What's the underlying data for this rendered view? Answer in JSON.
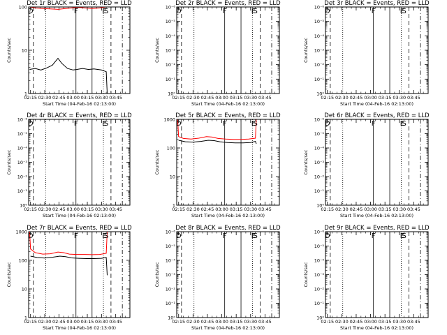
{
  "chart_data": {
    "type": "line",
    "layout": "3x3 grid",
    "xlabel": "Start Time (04-Feb-16 02:13:00)",
    "ylabel": "Counts/sec",
    "x_ticks": [
      "02:15",
      "02:30",
      "02:45",
      "03:00",
      "03:15",
      "03:30",
      "03:45"
    ],
    "x_range_minutes": [
      13,
      120
    ],
    "markers": [
      {
        "label": "D",
        "minute": 15
      },
      {
        "label": "F",
        "minute": 63
      },
      {
        "label": "E",
        "minute": 93
      },
      {
        "label": "S",
        "minute": 95
      }
    ],
    "vertical_lines": [
      {
        "style": "dashed",
        "minute": 18
      },
      {
        "style": "dotted",
        "minute": 31
      },
      {
        "style": "solid",
        "minute": 63
      },
      {
        "style": "solid",
        "minute": 80
      },
      {
        "style": "dotted",
        "minute": 92
      },
      {
        "style": "dashed",
        "minute": 100
      },
      {
        "style": "dashdot",
        "minute": 112
      }
    ],
    "series": [
      {
        "name": "Events",
        "color": "#000000"
      },
      {
        "name": "LLD",
        "color": "#ff0000"
      }
    ],
    "panels": [
      {
        "title": "Det 1r BLACK = Events, RED = LLD",
        "yscale": "log",
        "ylim": [
          1,
          100
        ],
        "y_ticks": [
          "1",
          "10",
          "100"
        ],
        "markers_shown": [
          "D",
          "F",
          "E",
          "S"
        ],
        "lld": [
          [
            14,
            100
          ],
          [
            20,
            95
          ],
          [
            28,
            92
          ],
          [
            36,
            90
          ],
          [
            44,
            88
          ],
          [
            52,
            92
          ],
          [
            60,
            96
          ],
          [
            65,
            98
          ],
          [
            72,
            95
          ],
          [
            80,
            92
          ],
          [
            88,
            95
          ],
          [
            95,
            100
          ]
        ],
        "events": [
          [
            14,
            3.6
          ],
          [
            20,
            3.8
          ],
          [
            26,
            3.5
          ],
          [
            32,
            3.9
          ],
          [
            38,
            4.5
          ],
          [
            44,
            6.5
          ],
          [
            48,
            5
          ],
          [
            54,
            3.8
          ],
          [
            60,
            3.5
          ],
          [
            64,
            3.6
          ],
          [
            70,
            3.8
          ],
          [
            76,
            3.6
          ],
          [
            82,
            3.7
          ],
          [
            90,
            3.5
          ],
          [
            95,
            3.2
          ],
          [
            96,
            1
          ]
        ]
      },
      {
        "title": "Det 2r BLACK = Events, RED = LLD",
        "yscale": "log",
        "ylim": [
          1e-06,
          1
        ],
        "y_ticks": [
          "10⁰",
          "10⁻¹",
          "10⁻²",
          "10⁻³",
          "10⁻⁴",
          "10⁻⁵",
          "10⁻⁶"
        ],
        "markers_shown": [
          "D",
          "F",
          "E",
          "S"
        ],
        "lld": [],
        "events": []
      },
      {
        "title": "Det 3r BLACK = Events, RED = LLD",
        "yscale": "log",
        "ylim": [
          1e-06,
          1
        ],
        "y_ticks": [
          "10⁰",
          "10⁻¹",
          "10⁻²",
          "10⁻³",
          "10⁻⁴",
          "10⁻⁵",
          "10⁻⁶"
        ],
        "markers_shown": [
          "D",
          "F",
          "E",
          "S"
        ],
        "lld": [],
        "events": []
      },
      {
        "title": "Det 4r BLACK = Events, RED = LLD",
        "yscale": "log",
        "ylim": [
          1e-06,
          1
        ],
        "y_ticks": [
          "10⁰",
          "10⁻¹",
          "10⁻²",
          "10⁻³",
          "10⁻⁴",
          "10⁻⁵",
          "10⁻⁶"
        ],
        "markers_shown": [
          "D",
          "F",
          "E",
          "S"
        ],
        "lld": [],
        "events": []
      },
      {
        "title": "Det 5r BLACK = Events, RED = LLD",
        "yscale": "log",
        "ylim": [
          1,
          1000
        ],
        "y_ticks": [
          "1",
          "10",
          "100",
          "1000"
        ],
        "markers_shown": [
          "D",
          "F",
          "E",
          "S"
        ],
        "lld": [
          [
            14,
            1000
          ],
          [
            15,
            250
          ],
          [
            20,
            215
          ],
          [
            28,
            205
          ],
          [
            36,
            220
          ],
          [
            44,
            250
          ],
          [
            50,
            240
          ],
          [
            56,
            215
          ],
          [
            64,
            205
          ],
          [
            72,
            200
          ],
          [
            80,
            200
          ],
          [
            88,
            205
          ],
          [
            95,
            220
          ],
          [
            96,
            1000
          ]
        ],
        "events": [
          [
            15,
            185
          ],
          [
            22,
            165
          ],
          [
            30,
            160
          ],
          [
            38,
            170
          ],
          [
            46,
            185
          ],
          [
            52,
            180
          ],
          [
            58,
            165
          ],
          [
            66,
            155
          ],
          [
            74,
            150
          ],
          [
            82,
            150
          ],
          [
            90,
            155
          ],
          [
            95,
            170
          ],
          [
            96,
            140
          ]
        ]
      },
      {
        "title": "Det 6r BLACK = Events, RED = LLD",
        "yscale": "log",
        "ylim": [
          1e-06,
          1
        ],
        "y_ticks": [
          "10⁰",
          "10⁻¹",
          "10⁻²",
          "10⁻³",
          "10⁻⁴",
          "10⁻⁵",
          "10⁻⁶"
        ],
        "markers_shown": [
          "D",
          "F",
          "E",
          "S"
        ],
        "lld": [],
        "events": []
      },
      {
        "title": "Det 7r BLACK = Events, RED = LLD",
        "yscale": "log",
        "ylim": [
          1,
          1000
        ],
        "y_ticks": [
          "1",
          "10",
          "100",
          "1000"
        ],
        "markers_shown": [
          "D",
          "F",
          "E",
          "S"
        ],
        "lld": [
          [
            14,
            1000
          ],
          [
            15,
            250
          ],
          [
            20,
            185
          ],
          [
            28,
            165
          ],
          [
            36,
            170
          ],
          [
            44,
            195
          ],
          [
            50,
            185
          ],
          [
            56,
            165
          ],
          [
            64,
            160
          ],
          [
            72,
            160
          ],
          [
            80,
            158
          ],
          [
            88,
            160
          ],
          [
            95,
            175
          ],
          [
            96,
            1000
          ]
        ],
        "events": [
          [
            15,
            140
          ],
          [
            22,
            125
          ],
          [
            30,
            120
          ],
          [
            38,
            128
          ],
          [
            46,
            140
          ],
          [
            52,
            135
          ],
          [
            58,
            122
          ],
          [
            66,
            118
          ],
          [
            74,
            115
          ],
          [
            82,
            115
          ],
          [
            90,
            118
          ],
          [
            95,
            125
          ],
          [
            96,
            30
          ]
        ]
      },
      {
        "title": "Det 8r BLACK = Events, RED = LLD",
        "yscale": "log",
        "ylim": [
          1e-06,
          1
        ],
        "y_ticks": [
          "10⁰",
          "10⁻¹",
          "10⁻²",
          "10⁻³",
          "10⁻⁴",
          "10⁻⁵",
          "10⁻⁶"
        ],
        "markers_shown": [
          "D",
          "F",
          "E",
          "S"
        ],
        "lld": [],
        "events": []
      },
      {
        "title": "Det 9r BLACK = Events, RED = LLD",
        "yscale": "log",
        "ylim": [
          1e-06,
          1
        ],
        "y_ticks": [
          "10⁰",
          "10⁻¹",
          "10⁻²",
          "10⁻³",
          "10⁻⁴",
          "10⁻⁵",
          "10⁻⁶"
        ],
        "markers_shown": [
          "D",
          "F",
          "E",
          "S"
        ],
        "lld": [],
        "events": []
      }
    ]
  }
}
